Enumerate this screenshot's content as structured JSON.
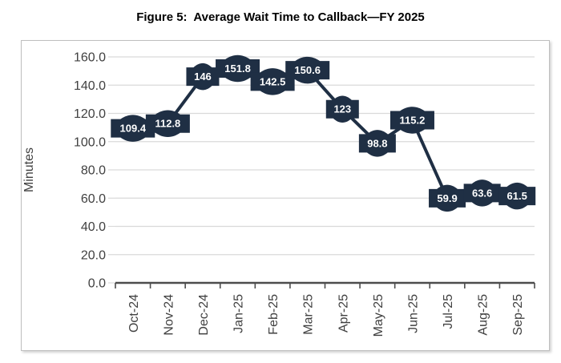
{
  "title": "Figure 5:  Average Wait Time to Callback—FY 2025",
  "colors": {
    "accent_navy": "#1f2f44",
    "badge_fill": "#1f2f44",
    "badge_text": "#ffffff",
    "gridline": "#d9d9d9",
    "axis_line": "#4d4d4d",
    "tick_label": "#404040",
    "frame_border": "#bfbfbf",
    "background": "#ffffff"
  },
  "chart_data": {
    "type": "line",
    "title": "Figure 5:  Average Wait Time to Callback—FY 2025",
    "categories": [
      "Oct-24",
      "Nov-24",
      "Dec-24",
      "Jan-25",
      "Feb-25",
      "Mar-25",
      "Apr-25",
      "May-25",
      "Jun-25",
      "Jul-25",
      "Aug-25",
      "Sep-25"
    ],
    "values": [
      109.4,
      112.8,
      146,
      151.8,
      142.5,
      150.6,
      123,
      98.8,
      115.2,
      59.9,
      63.6,
      61.5
    ],
    "value_labels": [
      "109.4",
      "112.8",
      "146",
      "151.8",
      "142.5",
      "150.6",
      "123",
      "98.8",
      "115.2",
      "59.9",
      "63.6",
      "61.5"
    ],
    "xlabel": "",
    "ylabel": "Minutes",
    "ylim": [
      0,
      160
    ],
    "ytick_step": 20,
    "ytick_labels": [
      "0.0",
      "20.0",
      "40.0",
      "60.0",
      "80.0",
      "100.0",
      "120.0",
      "140.0",
      "160.0"
    ],
    "grid": true,
    "legend": false,
    "x_tick_rotation": 90,
    "data_label_style": "wave-callout-badge-centered-on-point"
  }
}
